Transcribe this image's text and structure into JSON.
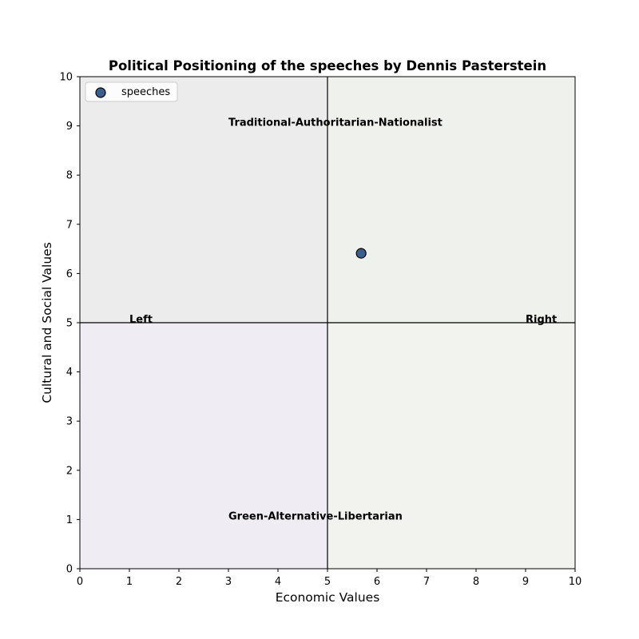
{
  "chart_data": {
    "type": "scatter",
    "title": "Political Positioning of the speeches by Dennis Pasterstein",
    "xlabel": "Economic Values",
    "ylabel": "Cultural and Social Values",
    "xlim": [
      0,
      10
    ],
    "ylim": [
      0,
      10
    ],
    "xticks": [
      "0",
      "1",
      "2",
      "3",
      "4",
      "5",
      "6",
      "7",
      "8",
      "9",
      "10"
    ],
    "yticks": [
      "0",
      "1",
      "2",
      "3",
      "4",
      "5",
      "6",
      "7",
      "8",
      "9",
      "10"
    ],
    "grid": false,
    "legend_position": "upper-left",
    "quadrants": [
      {
        "name": "upper-left",
        "x": [
          0,
          5
        ],
        "y": [
          5,
          10
        ],
        "color": "#ececec"
      },
      {
        "name": "upper-right",
        "x": [
          5,
          10
        ],
        "y": [
          5,
          10
        ],
        "color": "#eff1ed"
      },
      {
        "name": "lower-left",
        "x": [
          0,
          5
        ],
        "y": [
          0,
          5
        ],
        "color": "#efedf3"
      },
      {
        "name": "lower-right",
        "x": [
          5,
          10
        ],
        "y": [
          0,
          5
        ],
        "color": "#f2f3ee"
      }
    ],
    "reference_lines": {
      "x": 5,
      "y": 5
    },
    "annotations": [
      {
        "text": "Traditional-Authoritarian-Nationalist",
        "x": 3,
        "y": 9
      },
      {
        "text": "Green-Alternative-Libertarian",
        "x": 3,
        "y": 1
      },
      {
        "text": "Left",
        "x": 1,
        "y": 5
      },
      {
        "text": "Right",
        "x": 9,
        "y": 5
      }
    ],
    "series": [
      {
        "name": "speeches",
        "color": "#3a5f8f",
        "edge_color": "#000000",
        "points": [
          {
            "x": 5.68,
            "y": 6.41
          }
        ]
      }
    ]
  }
}
